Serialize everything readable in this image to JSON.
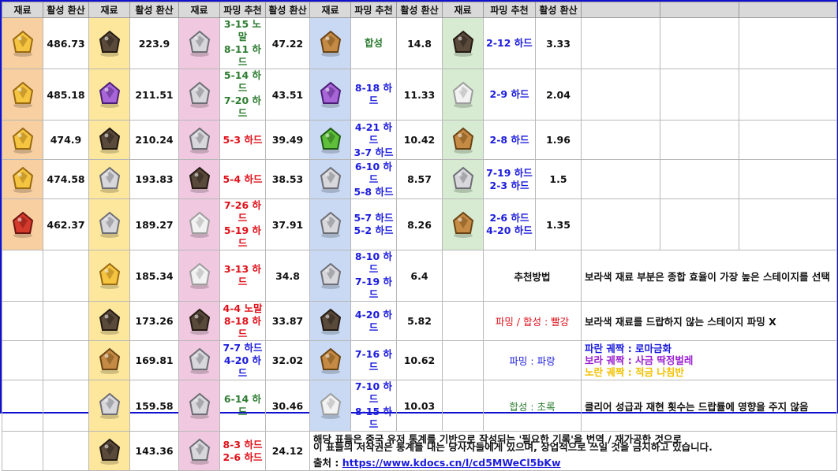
{
  "headers": [
    "재료",
    "활성 환산",
    "재료",
    "활성 환산",
    "재료",
    "파밍 추천",
    "활성 환산",
    "재료",
    "파밍 추천",
    "활성 환산",
    "재료",
    "파밍 추천",
    "활성 환산"
  ],
  "rows": [
    {
      "c1": {
        "icon": "golden-relic-icon",
        "val": "486.73"
      },
      "c2": {
        "icon": "ornate-box-icon",
        "val": "223.9"
      },
      "c3": {
        "icon": "pendant-icon",
        "farm": [
          "3-15 노말",
          "8-11 하드"
        ],
        "farm_color": "green",
        "val": "47.22"
      },
      "c4": {
        "icon": "bronze-medal-icon",
        "farm": [
          "합성"
        ],
        "farm_color": "green",
        "val": "14.8"
      },
      "c5": {
        "icon": "small-tools-icon",
        "farm": [
          "2-12 하드"
        ],
        "farm_color": "blue",
        "val": "3.33"
      }
    },
    {
      "c1": {
        "icon": "golden-caduceus-icon",
        "val": "485.18"
      },
      "c2": {
        "icon": "purple-potion-icon",
        "val": "211.51"
      },
      "c3": {
        "icon": "silver-chain-icon",
        "farm": [
          "5-14 하드",
          "7-20 하드"
        ],
        "farm_color": "green",
        "val": "43.51"
      },
      "c4": {
        "icon": "purple-flask-icon",
        "farm": [
          "8-18 하드"
        ],
        "farm_color": "blue",
        "val": "11.33"
      },
      "c5": {
        "icon": "white-powder-icon",
        "farm": [
          "2-9 하드"
        ],
        "farm_color": "blue",
        "val": "2.04"
      }
    },
    {
      "c1": {
        "icon": "golden-ring-icon",
        "val": "474.9"
      },
      "c2": {
        "icon": "dark-tome-icon",
        "val": "210.24"
      },
      "c3": {
        "icon": "winged-key-icon",
        "farm": [
          "5-3 하드"
        ],
        "farm_color": "red",
        "val": "39.49"
      },
      "c4": {
        "icon": "green-jar-icon",
        "farm": [
          "4-21 하드",
          "3-7 하드"
        ],
        "farm_color": "blue",
        "val": "10.42"
      },
      "c5": {
        "icon": "scroll-icon",
        "farm": [
          "2-8 하드"
        ],
        "farm_color": "blue",
        "val": "1.96"
      }
    },
    {
      "c1": {
        "icon": "laurel-wreath-icon",
        "val": "474.58"
      },
      "c2": {
        "icon": "silver-crystal-icon",
        "val": "193.83"
      },
      "c3": {
        "icon": "bomb-icon",
        "farm": [
          "5-4 하드"
        ],
        "farm_color": "red",
        "val": "38.53"
      },
      "c4": {
        "icon": "silver-dish-icon",
        "farm": [
          "6-10 하드",
          "5-8 하드"
        ],
        "farm_color": "blue",
        "val": "8.57"
      },
      "c5": {
        "icon": "metal-shard-icon",
        "farm": [
          "7-19 하드",
          "2-3 하드"
        ],
        "farm_color": "blue",
        "val": "1.5"
      }
    },
    {
      "c1": {
        "icon": "red-gem-icon",
        "val": "462.37"
      },
      "c2": {
        "icon": "moth-icon",
        "val": "189.27"
      },
      "c3": {
        "icon": "egg-statue-icon",
        "farm": [
          "7-26 하드",
          "5-19 하드"
        ],
        "farm_color": "red",
        "val": "37.91"
      },
      "c4": {
        "icon": "silver-gears-icon",
        "farm": [
          "5-7 하드",
          "5-2 하드"
        ],
        "farm_color": "blue",
        "val": "8.26"
      },
      "c5": {
        "icon": "broom-icon",
        "farm": [
          "2-6 하드",
          "4-20 하드"
        ],
        "farm_color": "blue",
        "val": "1.35"
      }
    },
    {
      "c2": {
        "icon": "golden-bowl-icon",
        "val": "185.34"
      },
      "c3": {
        "icon": "white-vase-icon",
        "farm": [
          "3-13 하드"
        ],
        "farm_color": "red",
        "val": "34.8"
      },
      "c4": {
        "icon": "steel-plates-icon",
        "farm": [
          "8-10 하드",
          "7-19 하드"
        ],
        "farm_color": "blue",
        "val": "6.4"
      },
      "c5_text": "추천방법"
    },
    {
      "c2": {
        "icon": "bell-jar-icon",
        "val": "173.26"
      },
      "c3": {
        "icon": "dark-cards-icon",
        "farm": [
          "4-4 노말",
          "8-18 하드"
        ],
        "farm_color": "red",
        "val": "33.87"
      },
      "c4": {
        "icon": "card-icon",
        "farm": [
          "4-20 하드"
        ],
        "farm_color": "blue",
        "val": "5.82"
      },
      "c5_text": "파밍 / 합성 : 빨강"
    },
    {
      "c2": {
        "icon": "leather-book-icon",
        "val": "169.81"
      },
      "c3": {
        "icon": "deer-statue-icon",
        "farm": [
          "7-7 하드",
          "4-20 하드"
        ],
        "farm_color": "blue",
        "val": "32.02"
      },
      "c4": {
        "icon": "wheel-icon",
        "farm": [
          "7-16 하드"
        ],
        "farm_color": "blue",
        "val": "10.62"
      },
      "c5_text": "파밍 : 파랑"
    },
    {
      "c2": {
        "icon": "crossed-blades-icon",
        "val": "159.58"
      },
      "c3": {
        "icon": "metal-blocks-icon",
        "farm": [
          "6-14 하드"
        ],
        "farm_color": "green",
        "val": "30.46"
      },
      "c4": {
        "icon": "feather-icon",
        "farm": [
          "7-10 하드",
          "8-15 하드"
        ],
        "farm_color": "blue",
        "val": "10.03"
      },
      "c5_text": "합성 : 초록"
    },
    {
      "c2": {
        "icon": "rune-book-icon",
        "val": "143.36"
      },
      "c3": {
        "icon": "bird-statue-icon",
        "farm": [
          "8-3 하드",
          "2-6 하드"
        ],
        "farm_color": "red",
        "val": "24.12"
      }
    }
  ],
  "notes": {
    "purple_note": "보라색 재료 부분은 종합 효율이 가장 높은 스테이지를 선택",
    "no_farm_note": "보라색 재료를 드랍하지 않는 스테이지 파밍 X",
    "legend_blue": "파란 궤짝 : 로마금화",
    "legend_purple": "보라 궤짝 : 사금 딱정벌레",
    "legend_yellow": "노란 궤짝 : 적금 나침반",
    "clear_note": "클리어 성급과 재현 횟수는 드랍률에 영향을 주지 않음",
    "fine_1": "해당 표들은 중국 유저 통계를 기반으로 작성되는 '필요한 기록'을 번역 / 재가공한 것으로",
    "fine_2": "이 표들의 저작권은 통계를 내는 당사자들에게 있으며, 상업적으로 쓰일 것을 금지하고 있습니다.",
    "source_label": "출처 :",
    "source_url": "https://www.kdocs.cn/l/cd5MWeCl5bKw"
  },
  "colors": {
    "orange": "#f8cfa0",
    "yellow": "#fde79c",
    "pink": "#f0c9e0",
    "blue": "#c9d9f3",
    "green": "#d6ebd1",
    "farm_green": "#2e7d32",
    "farm_blue": "#1c1cde",
    "farm_red": "#e0101a"
  }
}
